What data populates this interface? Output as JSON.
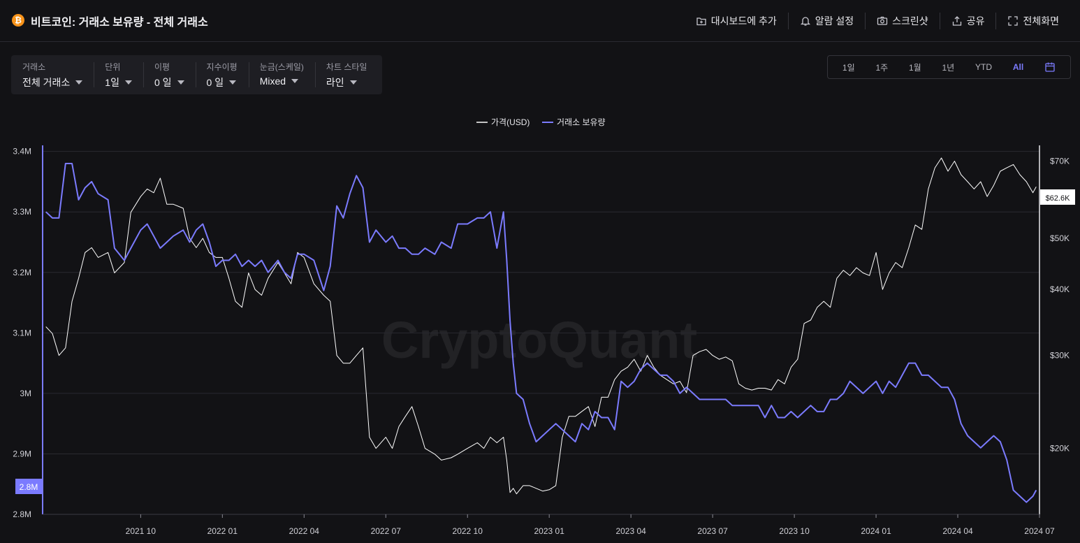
{
  "header": {
    "title": "비트코인: 거래소 보유량 - 전체 거래소",
    "logo_glyph": "₿",
    "actions": [
      {
        "label": "대시보드에 추가",
        "icon": "dashboard-add-icon"
      },
      {
        "label": "알람 설정",
        "icon": "bell-icon"
      },
      {
        "label": "스크린샷",
        "icon": "camera-icon"
      },
      {
        "label": "공유",
        "icon": "share-icon"
      },
      {
        "label": "전체화면",
        "icon": "fullscreen-icon"
      }
    ]
  },
  "filters": [
    {
      "label": "거래소",
      "value": "전체 거래소"
    },
    {
      "label": "단위",
      "value": "1일"
    },
    {
      "label": "이평",
      "value": "0 일"
    },
    {
      "label": "지수이평",
      "value": "0 일"
    },
    {
      "label": "눈금(스케일)",
      "value": "Mixed"
    },
    {
      "label": "차트 스타일",
      "value": "라인"
    }
  ],
  "ranges": {
    "items": [
      "1일",
      "1주",
      "1월",
      "1년",
      "YTD",
      "All"
    ],
    "active": "All"
  },
  "colors": {
    "background": "#121215",
    "price_line": "#ffffff",
    "reserve_line": "#7b7bff",
    "grid": "#2a2a30"
  },
  "chart_data": {
    "type": "line",
    "watermark": "CryptoQuant",
    "legend": {
      "placement": "top-center",
      "entries": [
        "가격(USD)",
        "거래소 보유량"
      ]
    },
    "x_ticks": [
      "2021 10",
      "2022 01",
      "2022 04",
      "2022 07",
      "2022 10",
      "2023 01",
      "2023 04",
      "2023 07",
      "2023 10",
      "2024 01",
      "2024 04",
      "2024 07"
    ],
    "x_tick_times": [
      2021.75,
      2022.0,
      2022.25,
      2022.5,
      2022.75,
      2023.0,
      2023.25,
      2023.5,
      2023.75,
      2024.0,
      2024.25,
      2024.5
    ],
    "x_range": [
      2021.45,
      2024.5
    ],
    "y_left": {
      "ticks": [
        "3.4M",
        "3.3M",
        "3.2M",
        "3.1M",
        "3M",
        "2.9M",
        "2.8M"
      ],
      "tick_values": [
        3.4,
        3.3,
        3.2,
        3.1,
        3.0,
        2.9,
        2.8
      ],
      "range": [
        2.8,
        3.41
      ],
      "scale": "linear"
    },
    "y_right": {
      "ticks": [
        "$70K",
        "$60K",
        "$50K",
        "$40K",
        "$30K",
        "$20K"
      ],
      "tick_values": [
        70000,
        60000,
        50000,
        40000,
        30000,
        20000
      ],
      "range": [
        15000,
        75000
      ],
      "scale": "log"
    },
    "last_value_labels": {
      "left": "2.8M",
      "right": "$62.6K"
    },
    "series": [
      {
        "name": "거래소 보유량",
        "axis": "left",
        "unit": "M BTC",
        "x": [
          2021.46,
          2021.48,
          2021.5,
          2021.52,
          2021.54,
          2021.56,
          2021.58,
          2021.6,
          2021.62,
          2021.65,
          2021.67,
          2021.7,
          2021.72,
          2021.75,
          2021.77,
          2021.79,
          2021.81,
          2021.83,
          2021.85,
          2021.88,
          2021.9,
          2021.92,
          2021.94,
          2021.96,
          2021.98,
          2022.0,
          2022.02,
          2022.04,
          2022.06,
          2022.08,
          2022.1,
          2022.12,
          2022.14,
          2022.17,
          2022.19,
          2022.21,
          2022.23,
          2022.25,
          2022.28,
          2022.31,
          2022.33,
          2022.35,
          2022.37,
          2022.39,
          2022.41,
          2022.43,
          2022.45,
          2022.47,
          2022.5,
          2022.52,
          2022.54,
          2022.56,
          2022.58,
          2022.6,
          2022.62,
          2022.65,
          2022.67,
          2022.7,
          2022.72,
          2022.75,
          2022.78,
          2022.8,
          2022.82,
          2022.84,
          2022.86,
          2022.87,
          2022.88,
          2022.89,
          2022.9,
          2022.92,
          2022.94,
          2022.96,
          2022.98,
          2023.0,
          2023.02,
          2023.04,
          2023.06,
          2023.08,
          2023.1,
          2023.12,
          2023.14,
          2023.16,
          2023.18,
          2023.2,
          2023.22,
          2023.24,
          2023.26,
          2023.28,
          2023.3,
          2023.32,
          2023.34,
          2023.36,
          2023.38,
          2023.4,
          2023.42,
          2023.44,
          2023.46,
          2023.48,
          2023.5,
          2023.52,
          2023.54,
          2023.56,
          2023.58,
          2023.6,
          2023.62,
          2023.64,
          2023.66,
          2023.68,
          2023.7,
          2023.72,
          2023.74,
          2023.76,
          2023.78,
          2023.8,
          2023.82,
          2023.84,
          2023.86,
          2023.88,
          2023.9,
          2023.92,
          2023.94,
          2023.96,
          2023.98,
          2024.0,
          2024.02,
          2024.04,
          2024.06,
          2024.08,
          2024.1,
          2024.12,
          2024.14,
          2024.16,
          2024.18,
          2024.2,
          2024.22,
          2024.24,
          2024.26,
          2024.28,
          2024.3,
          2024.32,
          2024.34,
          2024.36,
          2024.38,
          2024.4,
          2024.42,
          2024.44,
          2024.46,
          2024.48,
          2024.49
        ],
        "y": [
          3.3,
          3.29,
          3.29,
          3.38,
          3.38,
          3.32,
          3.34,
          3.35,
          3.33,
          3.32,
          3.24,
          3.22,
          3.24,
          3.27,
          3.28,
          3.26,
          3.24,
          3.25,
          3.26,
          3.27,
          3.25,
          3.27,
          3.28,
          3.25,
          3.21,
          3.22,
          3.22,
          3.23,
          3.21,
          3.22,
          3.21,
          3.22,
          3.2,
          3.22,
          3.2,
          3.19,
          3.23,
          3.23,
          3.22,
          3.17,
          3.21,
          3.31,
          3.29,
          3.33,
          3.36,
          3.34,
          3.25,
          3.27,
          3.25,
          3.26,
          3.24,
          3.24,
          3.23,
          3.23,
          3.24,
          3.23,
          3.25,
          3.24,
          3.28,
          3.28,
          3.29,
          3.29,
          3.3,
          3.24,
          3.3,
          3.22,
          3.12,
          3.05,
          3.0,
          2.99,
          2.95,
          2.92,
          2.93,
          2.94,
          2.95,
          2.94,
          2.93,
          2.92,
          2.95,
          2.94,
          2.97,
          2.96,
          2.96,
          2.94,
          3.02,
          3.01,
          3.02,
          3.04,
          3.05,
          3.04,
          3.03,
          3.03,
          3.02,
          3.0,
          3.01,
          3.0,
          2.99,
          2.99,
          2.99,
          2.99,
          2.99,
          2.98,
          2.98,
          2.98,
          2.98,
          2.98,
          2.96,
          2.98,
          2.96,
          2.96,
          2.97,
          2.96,
          2.97,
          2.98,
          2.97,
          2.97,
          2.99,
          2.99,
          3.0,
          3.02,
          3.01,
          3.0,
          3.01,
          3.02,
          3.0,
          3.02,
          3.01,
          3.03,
          3.05,
          3.05,
          3.03,
          3.03,
          3.02,
          3.01,
          3.01,
          2.99,
          2.95,
          2.93,
          2.92,
          2.91,
          2.92,
          2.93,
          2.92,
          2.89,
          2.84,
          2.83,
          2.82,
          2.83,
          2.84
        ]
      },
      {
        "name": "가격(USD)",
        "axis": "right",
        "unit": "USD",
        "x": [
          2021.46,
          2021.48,
          2021.5,
          2021.52,
          2021.54,
          2021.56,
          2021.58,
          2021.6,
          2021.62,
          2021.65,
          2021.67,
          2021.7,
          2021.72,
          2021.75,
          2021.77,
          2021.79,
          2021.81,
          2021.83,
          2021.85,
          2021.88,
          2021.9,
          2021.92,
          2021.94,
          2021.96,
          2021.98,
          2022.0,
          2022.02,
          2022.04,
          2022.06,
          2022.08,
          2022.1,
          2022.12,
          2022.14,
          2022.17,
          2022.19,
          2022.21,
          2022.23,
          2022.25,
          2022.28,
          2022.31,
          2022.33,
          2022.35,
          2022.37,
          2022.39,
          2022.41,
          2022.43,
          2022.45,
          2022.47,
          2022.5,
          2022.52,
          2022.54,
          2022.56,
          2022.58,
          2022.6,
          2022.62,
          2022.65,
          2022.67,
          2022.7,
          2022.72,
          2022.75,
          2022.78,
          2022.8,
          2022.82,
          2022.84,
          2022.86,
          2022.87,
          2022.88,
          2022.89,
          2022.9,
          2022.92,
          2022.94,
          2022.96,
          2022.98,
          2023.0,
          2023.02,
          2023.04,
          2023.06,
          2023.08,
          2023.1,
          2023.12,
          2023.14,
          2023.16,
          2023.18,
          2023.2,
          2023.22,
          2023.24,
          2023.26,
          2023.28,
          2023.3,
          2023.32,
          2023.34,
          2023.36,
          2023.38,
          2023.4,
          2023.42,
          2023.44,
          2023.46,
          2023.48,
          2023.5,
          2023.52,
          2023.54,
          2023.56,
          2023.58,
          2023.6,
          2023.62,
          2023.64,
          2023.66,
          2023.68,
          2023.7,
          2023.72,
          2023.74,
          2023.76,
          2023.78,
          2023.8,
          2023.82,
          2023.84,
          2023.86,
          2023.88,
          2023.9,
          2023.92,
          2023.94,
          2023.96,
          2023.98,
          2024.0,
          2024.02,
          2024.04,
          2024.06,
          2024.08,
          2024.1,
          2024.12,
          2024.14,
          2024.16,
          2024.18,
          2024.2,
          2024.22,
          2024.24,
          2024.26,
          2024.28,
          2024.3,
          2024.32,
          2024.34,
          2024.36,
          2024.38,
          2024.4,
          2024.42,
          2024.44,
          2024.46,
          2024.48,
          2024.49
        ],
        "y": [
          34000,
          33000,
          30000,
          31000,
          38000,
          42000,
          47000,
          48000,
          46000,
          47000,
          43000,
          45000,
          56000,
          60000,
          62000,
          61000,
          65000,
          58000,
          58000,
          57000,
          50000,
          48000,
          50000,
          47000,
          46000,
          46000,
          42000,
          38000,
          37000,
          43000,
          40000,
          39000,
          42000,
          45000,
          43000,
          41000,
          47000,
          46000,
          41000,
          39000,
          38000,
          30000,
          29000,
          29000,
          30000,
          31000,
          21000,
          20000,
          21000,
          20000,
          22000,
          23000,
          24000,
          22000,
          20000,
          19500,
          19000,
          19200,
          19500,
          20000,
          20500,
          20000,
          21000,
          20500,
          21000,
          19000,
          16500,
          16800,
          16400,
          17000,
          17000,
          16800,
          16600,
          16700,
          17000,
          21000,
          23000,
          23000,
          23500,
          24000,
          22000,
          25000,
          25000,
          27000,
          28000,
          28500,
          29500,
          28000,
          30000,
          28500,
          27500,
          27000,
          26500,
          26800,
          25500,
          30000,
          30500,
          30800,
          30000,
          29500,
          29800,
          29300,
          26500,
          26000,
          25800,
          26000,
          26000,
          25800,
          27000,
          26500,
          28500,
          29500,
          34500,
          35000,
          37000,
          38000,
          37000,
          42000,
          43500,
          42500,
          44000,
          43000,
          42500,
          47000,
          40000,
          43000,
          45000,
          44000,
          48000,
          53000,
          52000,
          62000,
          68000,
          71000,
          67000,
          70000,
          66000,
          64000,
          62000,
          64000,
          60000,
          63000,
          67000,
          68000,
          69000,
          66000,
          64000,
          61000,
          62600
        ]
      }
    ]
  }
}
